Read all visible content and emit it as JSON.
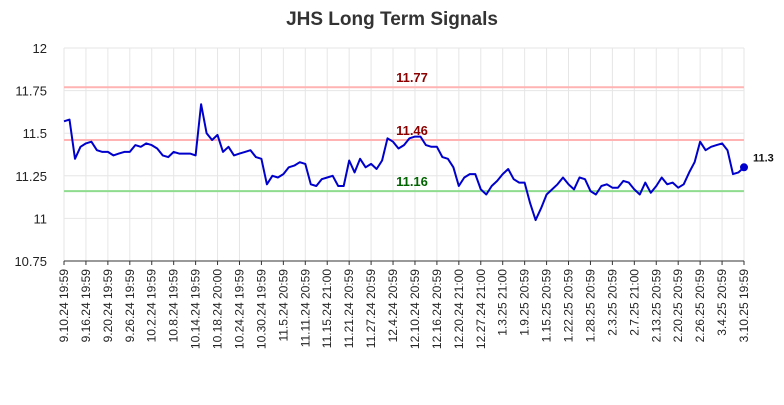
{
  "chart_data": {
    "type": "line",
    "title": "JHS Long Term Signals",
    "ylim": [
      10.75,
      12
    ],
    "yticks": [
      {
        "value": 10.75,
        "label": "10.75"
      },
      {
        "value": 11,
        "label": "11"
      },
      {
        "value": 11.25,
        "label": "11.25"
      },
      {
        "value": 11.5,
        "label": "11.5"
      },
      {
        "value": 11.75,
        "label": "11.75"
      },
      {
        "value": 12,
        "label": "12"
      }
    ],
    "xtick_labels": [
      "9.10.24 19:59",
      "9.16.24 19:59",
      "9.20.24 19:59",
      "9.26.24 19:59",
      "10.2.24 19:59",
      "10.8.24 19:59",
      "10.14.24 19:59",
      "10.18.24 20:00",
      "10.24.24 19:59",
      "10.30.24 19:59",
      "11.5.24 20:59",
      "11.11.24 20:59",
      "11.15.24 21:00",
      "11.21.24 20:59",
      "11.27.24 20:59",
      "12.4.24 20:59",
      "12.10.24 20:59",
      "12.16.24 20:59",
      "12.20.24 21:00",
      "12.27.24 21:00",
      "1.3.25 21:00",
      "1.9.25 20:59",
      "1.15.25 20:59",
      "1.22.25 20:59",
      "1.28.25 20:59",
      "2.3.25 20:59",
      "2.7.25 21:00",
      "2.13.25 20:59",
      "2.20.25 20:59",
      "2.26.25 20:59",
      "3.4.25 20:59",
      "3.10.25 19:59"
    ],
    "grid": true,
    "series": [
      {
        "color": "#0000cc",
        "values": [
          11.57,
          11.58,
          11.35,
          11.42,
          11.44,
          11.45,
          11.4,
          11.39,
          11.39,
          11.37,
          11.38,
          11.39,
          11.39,
          11.43,
          11.42,
          11.44,
          11.43,
          11.41,
          11.37,
          11.36,
          11.39,
          11.38,
          11.38,
          11.38,
          11.37,
          11.67,
          11.5,
          11.46,
          11.49,
          11.39,
          11.42,
          11.37,
          11.38,
          11.39,
          11.4,
          11.36,
          11.35,
          11.2,
          11.25,
          11.24,
          11.26,
          11.3,
          11.31,
          11.33,
          11.32,
          11.2,
          11.19,
          11.23,
          11.24,
          11.25,
          11.19,
          11.19,
          11.34,
          11.27,
          11.35,
          11.3,
          11.32,
          11.29,
          11.34,
          11.47,
          11.45,
          11.41,
          11.43,
          11.47,
          11.48,
          11.48,
          11.43,
          11.42,
          11.42,
          11.36,
          11.35,
          11.3,
          11.19,
          11.24,
          11.26,
          11.26,
          11.17,
          11.14,
          11.19,
          11.22,
          11.26,
          11.29,
          11.23,
          11.21,
          11.21,
          11.09,
          10.99,
          11.06,
          11.14,
          11.17,
          11.2,
          11.24,
          11.2,
          11.17,
          11.24,
          11.23,
          11.16,
          11.14,
          11.19,
          11.2,
          11.18,
          11.18,
          11.22,
          11.21,
          11.17,
          11.14,
          11.21,
          11.15,
          11.19,
          11.24,
          11.2,
          11.21,
          11.18,
          11.2,
          11.27,
          11.33,
          11.45,
          11.4,
          11.42,
          11.43,
          11.44,
          11.4,
          11.26,
          11.27,
          11.3
        ]
      }
    ],
    "hlines": [
      {
        "value": 11.77,
        "label": "11.77",
        "line_color": "#ffb3b3",
        "label_color": "#8b0000"
      },
      {
        "value": 11.46,
        "label": "11.46",
        "line_color": "#ffb3b3",
        "label_color": "#8b0000"
      },
      {
        "value": 11.16,
        "label": "11.16",
        "line_color": "#8fdc8f",
        "label_color": "#006400"
      }
    ],
    "last_value_label": "11.3"
  }
}
